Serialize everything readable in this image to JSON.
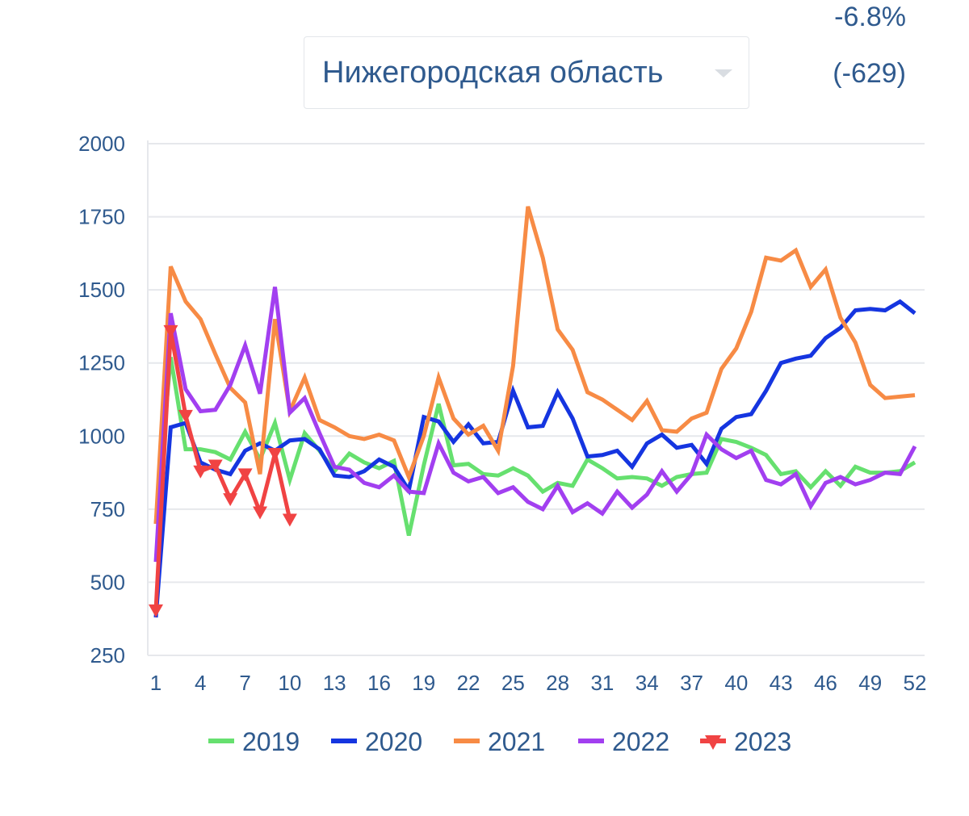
{
  "header": {
    "change_percent": "-6.8%",
    "change_absolute": "(-629)",
    "region_select": {
      "selected": "Нижегородская область",
      "caret_icon": "chevron-down-icon"
    }
  },
  "chart_data": {
    "type": "line",
    "title": "",
    "xlabel": "",
    "ylabel": "",
    "xlim": [
      1,
      52
    ],
    "ylim": [
      250,
      2000
    ],
    "yticks": [
      250,
      500,
      750,
      1000,
      1250,
      1500,
      1750,
      2000
    ],
    "xticks": [
      1,
      4,
      7,
      10,
      13,
      16,
      19,
      22,
      25,
      28,
      31,
      34,
      37,
      40,
      43,
      46,
      49,
      52
    ],
    "grid": "horizontal",
    "legend_position": "bottom",
    "series": [
      {
        "name": "2019",
        "color": "#66e06f",
        "marker": "none",
        "x": [
          1,
          2,
          3,
          4,
          5,
          6,
          7,
          8,
          9,
          10,
          11,
          12,
          13,
          14,
          15,
          16,
          17,
          18,
          19,
          20,
          21,
          22,
          23,
          24,
          25,
          26,
          27,
          28,
          29,
          30,
          31,
          32,
          33,
          34,
          35,
          36,
          37,
          38,
          39,
          40,
          41,
          42,
          43,
          44,
          45,
          46,
          47,
          48,
          49,
          50,
          51,
          52
        ],
        "values": [
          700,
          1270,
          955,
          955,
          945,
          920,
          1015,
          920,
          1045,
          850,
          1010,
          950,
          880,
          940,
          910,
          890,
          915,
          660,
          900,
          1110,
          900,
          905,
          870,
          865,
          890,
          865,
          810,
          840,
          830,
          920,
          890,
          855,
          860,
          855,
          830,
          860,
          870,
          875,
          990,
          980,
          960,
          935,
          870,
          880,
          825,
          880,
          830,
          895,
          875,
          875,
          880,
          910
        ]
      },
      {
        "name": "2020",
        "color": "#1535e0",
        "marker": "none",
        "x": [
          1,
          2,
          3,
          4,
          5,
          6,
          7,
          8,
          9,
          10,
          11,
          12,
          13,
          14,
          15,
          16,
          17,
          18,
          19,
          20,
          21,
          22,
          23,
          24,
          25,
          26,
          27,
          28,
          29,
          30,
          31,
          32,
          33,
          34,
          35,
          36,
          37,
          38,
          39,
          40,
          41,
          42,
          43,
          44,
          45,
          46,
          47,
          48,
          49,
          50,
          51,
          52
        ],
        "values": [
          380,
          1030,
          1045,
          910,
          885,
          870,
          950,
          975,
          950,
          985,
          990,
          955,
          865,
          860,
          880,
          920,
          895,
          815,
          1065,
          1050,
          980,
          1040,
          975,
          980,
          1155,
          1030,
          1035,
          1150,
          1060,
          930,
          935,
          950,
          895,
          975,
          1005,
          960,
          970,
          905,
          1025,
          1065,
          1075,
          1155,
          1250,
          1265,
          1275,
          1335,
          1370,
          1430,
          1435,
          1430,
          1460,
          1420
        ]
      },
      {
        "name": "2021",
        "color": "#f78b45",
        "marker": "none",
        "x": [
          1,
          2,
          3,
          4,
          5,
          6,
          7,
          8,
          9,
          10,
          11,
          12,
          13,
          14,
          15,
          16,
          17,
          18,
          19,
          20,
          21,
          22,
          23,
          24,
          25,
          26,
          27,
          28,
          29,
          30,
          31,
          32,
          33,
          34,
          35,
          36,
          37,
          38,
          39,
          40,
          41,
          42,
          43,
          44,
          45,
          46,
          47,
          48,
          49,
          50,
          51,
          52
        ],
        "values": [
          700,
          1580,
          1460,
          1400,
          1280,
          1165,
          1115,
          870,
          1400,
          1085,
          1200,
          1055,
          1030,
          1000,
          990,
          1005,
          985,
          860,
          1000,
          1200,
          1060,
          1005,
          1035,
          950,
          1240,
          1785,
          1610,
          1365,
          1295,
          1150,
          1125,
          1090,
          1055,
          1120,
          1020,
          1015,
          1060,
          1080,
          1230,
          1300,
          1425,
          1610,
          1600,
          1635,
          1510,
          1570,
          1405,
          1320,
          1175,
          1130,
          1135,
          1140
        ]
      },
      {
        "name": "2022",
        "color": "#a23ff0",
        "marker": "none",
        "x": [
          1,
          2,
          3,
          4,
          5,
          6,
          7,
          8,
          9,
          10,
          11,
          12,
          13,
          14,
          15,
          16,
          17,
          18,
          19,
          20,
          21,
          22,
          23,
          24,
          25,
          26,
          27,
          28,
          29,
          30,
          31,
          32,
          33,
          34,
          35,
          36,
          37,
          38,
          39,
          40,
          41,
          42,
          43,
          44,
          45,
          46,
          47,
          48,
          49,
          50,
          51,
          52
        ],
        "values": [
          570,
          1420,
          1160,
          1085,
          1090,
          1175,
          1310,
          1145,
          1510,
          1080,
          1130,
          1010,
          895,
          885,
          840,
          825,
          865,
          810,
          805,
          975,
          875,
          845,
          860,
          805,
          825,
          775,
          750,
          830,
          740,
          770,
          735,
          810,
          755,
          800,
          880,
          810,
          870,
          1005,
          955,
          925,
          950,
          850,
          835,
          870,
          760,
          840,
          860,
          835,
          850,
          875,
          870,
          965
        ]
      },
      {
        "name": "2023",
        "color": "#f04343",
        "marker": "triangle-down",
        "x": [
          1,
          2,
          3,
          4,
          5,
          6,
          7,
          8,
          9,
          10
        ],
        "values": [
          405,
          1360,
          1070,
          880,
          900,
          785,
          870,
          740,
          940,
          715
        ]
      }
    ]
  }
}
